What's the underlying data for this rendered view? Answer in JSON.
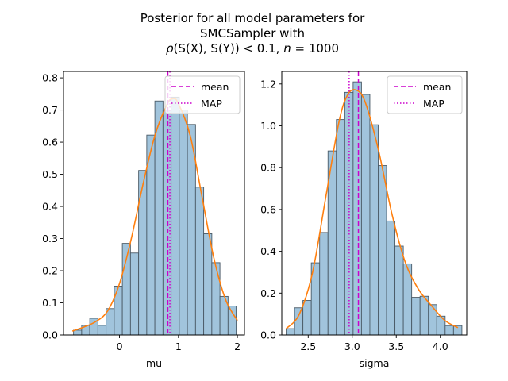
{
  "figure": {
    "title_lines": [
      "Posterior for all model parameters for",
      "SMCSampler with"
    ],
    "title_math": {
      "rho": "ρ",
      "expr": "(S(X), S(Y)) < 0.1, ",
      "n": "n",
      "eq": " = 1000"
    }
  },
  "colors": {
    "bar_fill": "#a1c4dc",
    "bar_edge": "#4a5a66",
    "kde": "#ff7f0e",
    "mean_line": "#cc00cc",
    "map_line": "#cc00cc"
  },
  "chart_data": [
    {
      "type": "bar",
      "subtype": "histogram_with_kde",
      "xlabel": "mu",
      "ylabel": "",
      "xlim": [
        -0.95,
        2.12
      ],
      "ylim": [
        0,
        0.82
      ],
      "xticks": [
        0,
        1,
        2
      ],
      "yticks": [
        0.0,
        0.1,
        0.2,
        0.3,
        0.4,
        0.5,
        0.6,
        0.7,
        0.8
      ],
      "grid": false,
      "legend_position": "top-right",
      "legend": [
        {
          "label": "mean",
          "style": "dashed"
        },
        {
          "label": "MAP",
          "style": "dotted"
        }
      ],
      "bin_width": 0.138,
      "bin_left_edges": [
        -0.78,
        -0.642,
        -0.504,
        -0.366,
        -0.228,
        -0.09,
        0.048,
        0.186,
        0.324,
        0.462,
        0.6,
        0.738,
        0.876,
        1.014,
        1.152,
        1.29,
        1.428,
        1.566,
        1.704,
        1.842
      ],
      "values": [
        0.015,
        0.03,
        0.052,
        0.03,
        0.082,
        0.152,
        0.285,
        0.255,
        0.512,
        0.622,
        0.728,
        0.7,
        0.74,
        0.7,
        0.655,
        0.46,
        0.315,
        0.225,
        0.12,
        0.09
      ],
      "kde": {
        "x": [
          -0.8,
          -0.6,
          -0.4,
          -0.2,
          0.0,
          0.2,
          0.4,
          0.6,
          0.8,
          0.9,
          1.0,
          1.2,
          1.4,
          1.6,
          1.8,
          2.0
        ],
        "y": [
          0.012,
          0.025,
          0.042,
          0.075,
          0.16,
          0.3,
          0.47,
          0.62,
          0.715,
          0.735,
          0.72,
          0.62,
          0.43,
          0.24,
          0.11,
          0.045
        ]
      },
      "mean": 0.82,
      "map": 0.855
    },
    {
      "type": "bar",
      "subtype": "histogram_with_kde",
      "xlabel": "sigma",
      "ylabel": "",
      "xlim": [
        2.2,
        4.3
      ],
      "ylim": [
        0,
        1.26
      ],
      "xticks": [
        2.5,
        3.0,
        3.5,
        4.0
      ],
      "yticks": [
        0.0,
        0.2,
        0.4,
        0.6,
        0.8,
        1.0,
        1.2
      ],
      "grid": false,
      "legend_position": "top-right",
      "legend": [
        {
          "label": "mean",
          "style": "dashed"
        },
        {
          "label": "MAP",
          "style": "dotted"
        }
      ],
      "bin_width": 0.095,
      "bin_left_edges": [
        2.25,
        2.345,
        2.44,
        2.535,
        2.63,
        2.725,
        2.82,
        2.915,
        3.01,
        3.105,
        3.2,
        3.295,
        3.39,
        3.485,
        3.58,
        3.675,
        3.77,
        3.865,
        3.96,
        4.055,
        4.15
      ],
      "values": [
        0.03,
        0.13,
        0.165,
        0.345,
        0.49,
        0.88,
        1.03,
        1.16,
        1.21,
        1.15,
        1.005,
        0.81,
        0.545,
        0.425,
        0.34,
        0.18,
        0.185,
        0.145,
        0.09,
        0.045,
        0.045
      ],
      "kde": {
        "x": [
          2.25,
          2.4,
          2.55,
          2.7,
          2.85,
          2.95,
          3.05,
          3.15,
          3.3,
          3.45,
          3.6,
          3.75,
          3.9,
          4.05,
          4.2
        ],
        "y": [
          0.03,
          0.1,
          0.3,
          0.66,
          1.02,
          1.15,
          1.17,
          1.11,
          0.88,
          0.58,
          0.35,
          0.22,
          0.14,
          0.07,
          0.035
        ]
      },
      "mean": 3.07,
      "map": 2.965
    }
  ]
}
